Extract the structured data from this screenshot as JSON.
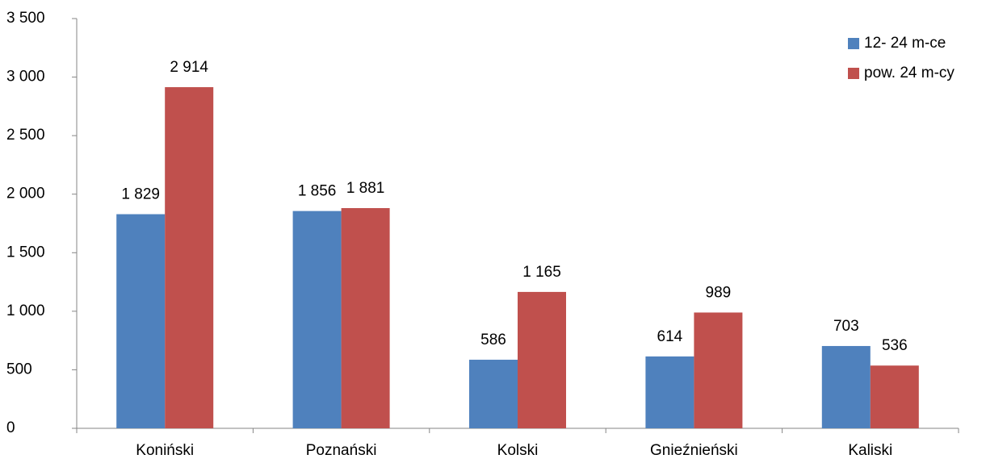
{
  "chart_data": {
    "type": "bar",
    "categories": [
      "Koniński",
      "Poznański",
      "Kolski",
      "Gnieźnieński",
      "Kaliski"
    ],
    "series": [
      {
        "name": "12- 24 m-ce",
        "color": "#4f81bd",
        "values": [
          1829,
          1856,
          586,
          614,
          703
        ],
        "value_labels": [
          "1 829",
          "1 856",
          "586",
          "614",
          "703"
        ]
      },
      {
        "name": "pow. 24 m-cy",
        "color": "#c0504d",
        "values": [
          2914,
          1881,
          1165,
          989,
          536
        ],
        "value_labels": [
          "2 914",
          "1 881",
          "1 165",
          "989",
          "536"
        ]
      }
    ],
    "ylim": [
      0,
      3500
    ],
    "yticks": [
      0,
      500,
      {
        "value": 1000,
        "label": "1 000"
      },
      {
        "value": 1500,
        "label": "1 500"
      },
      {
        "value": 2000,
        "label": "2 000"
      },
      {
        "value": 2500,
        "label": "2 500"
      },
      {
        "value": 3000,
        "label": "3 000"
      },
      {
        "value": 3500,
        "label": "3 500"
      }
    ],
    "grid": false,
    "legend": "right"
  }
}
